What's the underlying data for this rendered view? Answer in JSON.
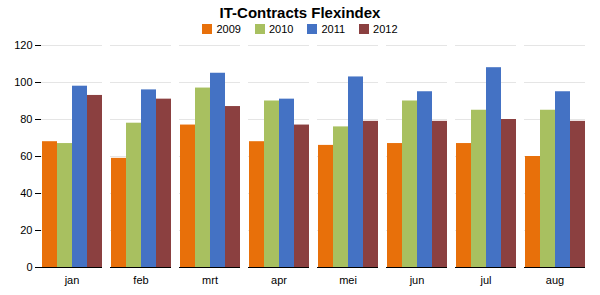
{
  "chart_data": {
    "type": "bar",
    "title": "IT-Contracts Flexindex",
    "categories": [
      "jan",
      "feb",
      "mrt",
      "apr",
      "mei",
      "jun",
      "jul",
      "aug"
    ],
    "series": [
      {
        "name": "2009",
        "color": "#E8700A",
        "values": [
          68,
          59,
          77,
          68,
          66,
          67,
          67,
          60
        ]
      },
      {
        "name": "2010",
        "color": "#A8C060",
        "values": [
          67,
          78,
          97,
          90,
          76,
          90,
          85,
          85
        ]
      },
      {
        "name": "2011",
        "color": "#4472C4",
        "values": [
          98,
          96,
          105,
          91,
          103,
          95,
          108,
          95
        ]
      },
      {
        "name": "2012",
        "color": "#8B4040",
        "values": [
          93,
          91,
          87,
          77,
          79,
          79,
          80,
          79
        ]
      }
    ],
    "ylim": [
      0,
      120
    ],
    "yticks": [
      0,
      20,
      40,
      60,
      80,
      100,
      120
    ],
    "grid": true
  }
}
